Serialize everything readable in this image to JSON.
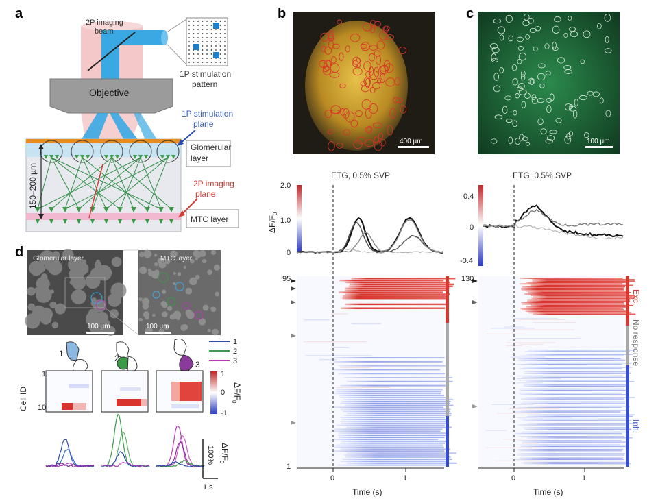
{
  "panel_labels": {
    "a": "a",
    "b": "b",
    "c": "c",
    "d": "d"
  },
  "panel_a": {
    "beam_label_1": "2P imaging",
    "beam_label_2": "beam",
    "pattern_label_1": "1P stimulation",
    "pattern_label_2": "pattern",
    "objective": "Objective",
    "stim_plane_1": "1P stimulation",
    "stim_plane_2": "plane",
    "glom_1": "Glomerular",
    "glom_2": "layer",
    "imaging_plane_1": "2P imaging",
    "imaging_plane_2": "plane",
    "mtc": "MTC layer",
    "depth": "150–200 µm"
  },
  "panel_b": {
    "scalebar": "400 µm",
    "trace_title": "ETG, 0.5% SVP",
    "yticks": [
      "2.0",
      "1.0",
      "0"
    ],
    "ylabel": "ΔF/F",
    "ylabel_sub": "0",
    "heat_top": "95",
    "heat_bottom": "1",
    "xticks": [
      "0",
      "1"
    ],
    "xlabel": "Time (s)"
  },
  "panel_c": {
    "scalebar": "100 µm",
    "trace_title": "ETG, 0.5% SVP",
    "yticks": [
      "0.4",
      "0",
      "-0.4"
    ],
    "heat_top": "130",
    "xticks": [
      "0",
      "1"
    ],
    "xlabel": "Time (s)",
    "side_labels": [
      "Exc.",
      "No response",
      "Inh."
    ]
  },
  "panel_d": {
    "img1_label": "Glomerular layer",
    "img2_label": "MTC layer",
    "scale1": "100 µm",
    "scale2": "100 µm",
    "glom_nums": [
      "1",
      "2",
      "3"
    ],
    "legend": [
      "1",
      "2",
      "3"
    ],
    "cell_id": "Cell ID",
    "row_top": "1",
    "row_bottom": "10",
    "cbar_ticks": [
      "1",
      "0",
      "-1"
    ],
    "cbar_label": "ΔF/F",
    "cbar_label_sub": "0",
    "scale_y": "100%",
    "scale_y_label": "ΔF/F",
    "scale_y_label_sub": "0",
    "scale_x": "1 s"
  },
  "colors": {
    "red": "#d43a32",
    "blue": "#3a4fc9",
    "grey": "#a9a9a9",
    "green": "#3a9a48",
    "beam_blue": "#3aa9e3",
    "beam_pink": "#f4c8c8",
    "magenta": "#b43ab6"
  }
}
